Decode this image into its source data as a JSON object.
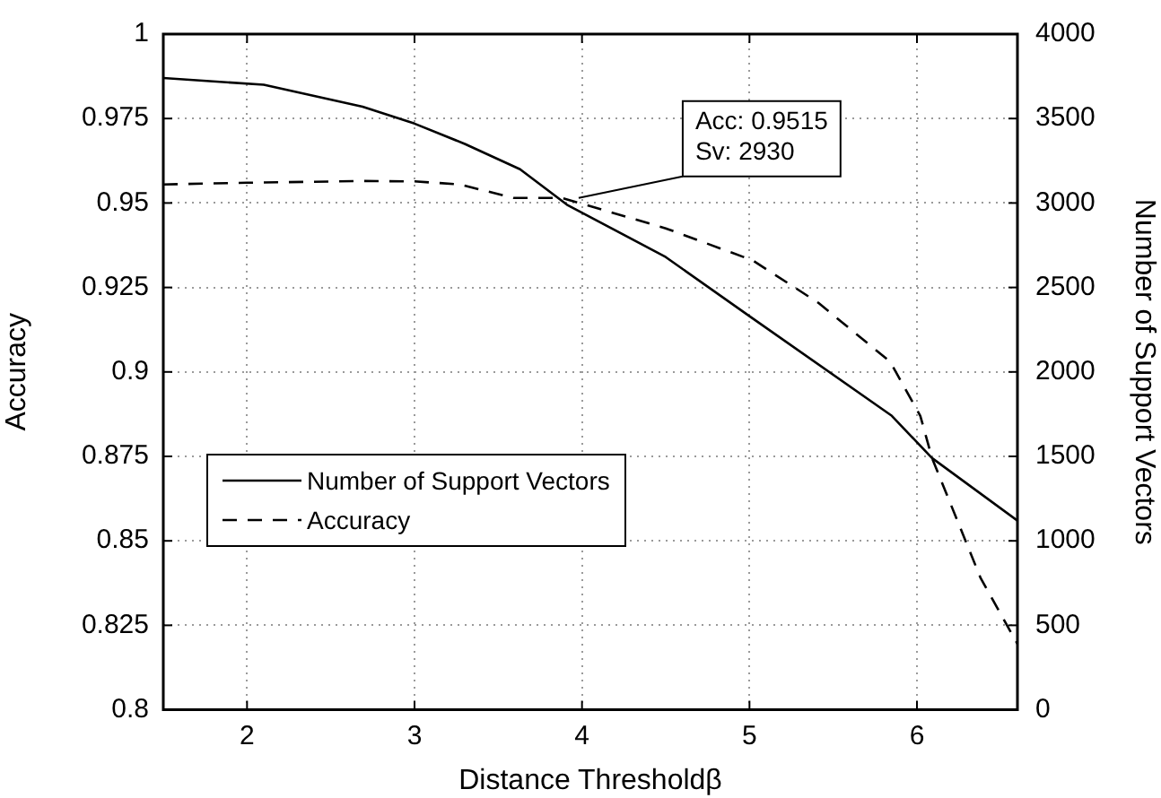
{
  "chart_data": {
    "type": "line",
    "xlabel": "Distance Thresholdβ",
    "ylabel": "Accuracy",
    "y2label": "Number of Support Vectors",
    "xlim": [
      1.5,
      6.6
    ],
    "xticks": [
      2,
      3,
      4,
      5,
      6
    ],
    "ylim": [
      0.8,
      1
    ],
    "yticks": [
      0.8,
      0.825,
      0.85,
      0.875,
      0.9,
      0.925,
      0.95,
      0.975,
      1
    ],
    "y2lim": [
      0,
      4000
    ],
    "y2ticks": [
      0,
      500,
      1000,
      1500,
      2000,
      2500,
      3000,
      3500,
      4000
    ],
    "grid": true,
    "legend": "left",
    "marker": "none",
    "series": [
      {
        "name": "Number of Support Vectors",
        "color": "#000000",
        "axis": "y2",
        "line_style": "solid",
        "x": [
          1.5,
          2.1,
          2.69,
          3.0,
          3.3,
          3.63,
          3.91,
          4.5,
          5.0,
          5.85,
          6.09,
          6.6
        ],
        "values": [
          3740,
          3700,
          3570,
          3470,
          3350,
          3200,
          2990,
          2680,
          2330,
          1740,
          1490,
          1120
        ]
      },
      {
        "name": "Accuracy",
        "color": "#000000",
        "axis": "y",
        "line_style": "dashed",
        "x": [
          1.5,
          2.0,
          2.69,
          3.0,
          3.27,
          3.59,
          3.88,
          4.5,
          5.02,
          5.41,
          5.84,
          6.02,
          6.09,
          6.38,
          6.6
        ],
        "values": [
          0.9555,
          0.956,
          0.9565,
          0.9564,
          0.9555,
          0.9515,
          0.9515,
          0.9425,
          0.933,
          0.9205,
          0.903,
          0.887,
          0.8745,
          0.839,
          0.8195
        ]
      }
    ],
    "annotations": [
      {
        "text": "Acc: 0.9515\nSv: 2930",
        "x": 3.98,
        "y": 0.9515
      }
    ]
  }
}
